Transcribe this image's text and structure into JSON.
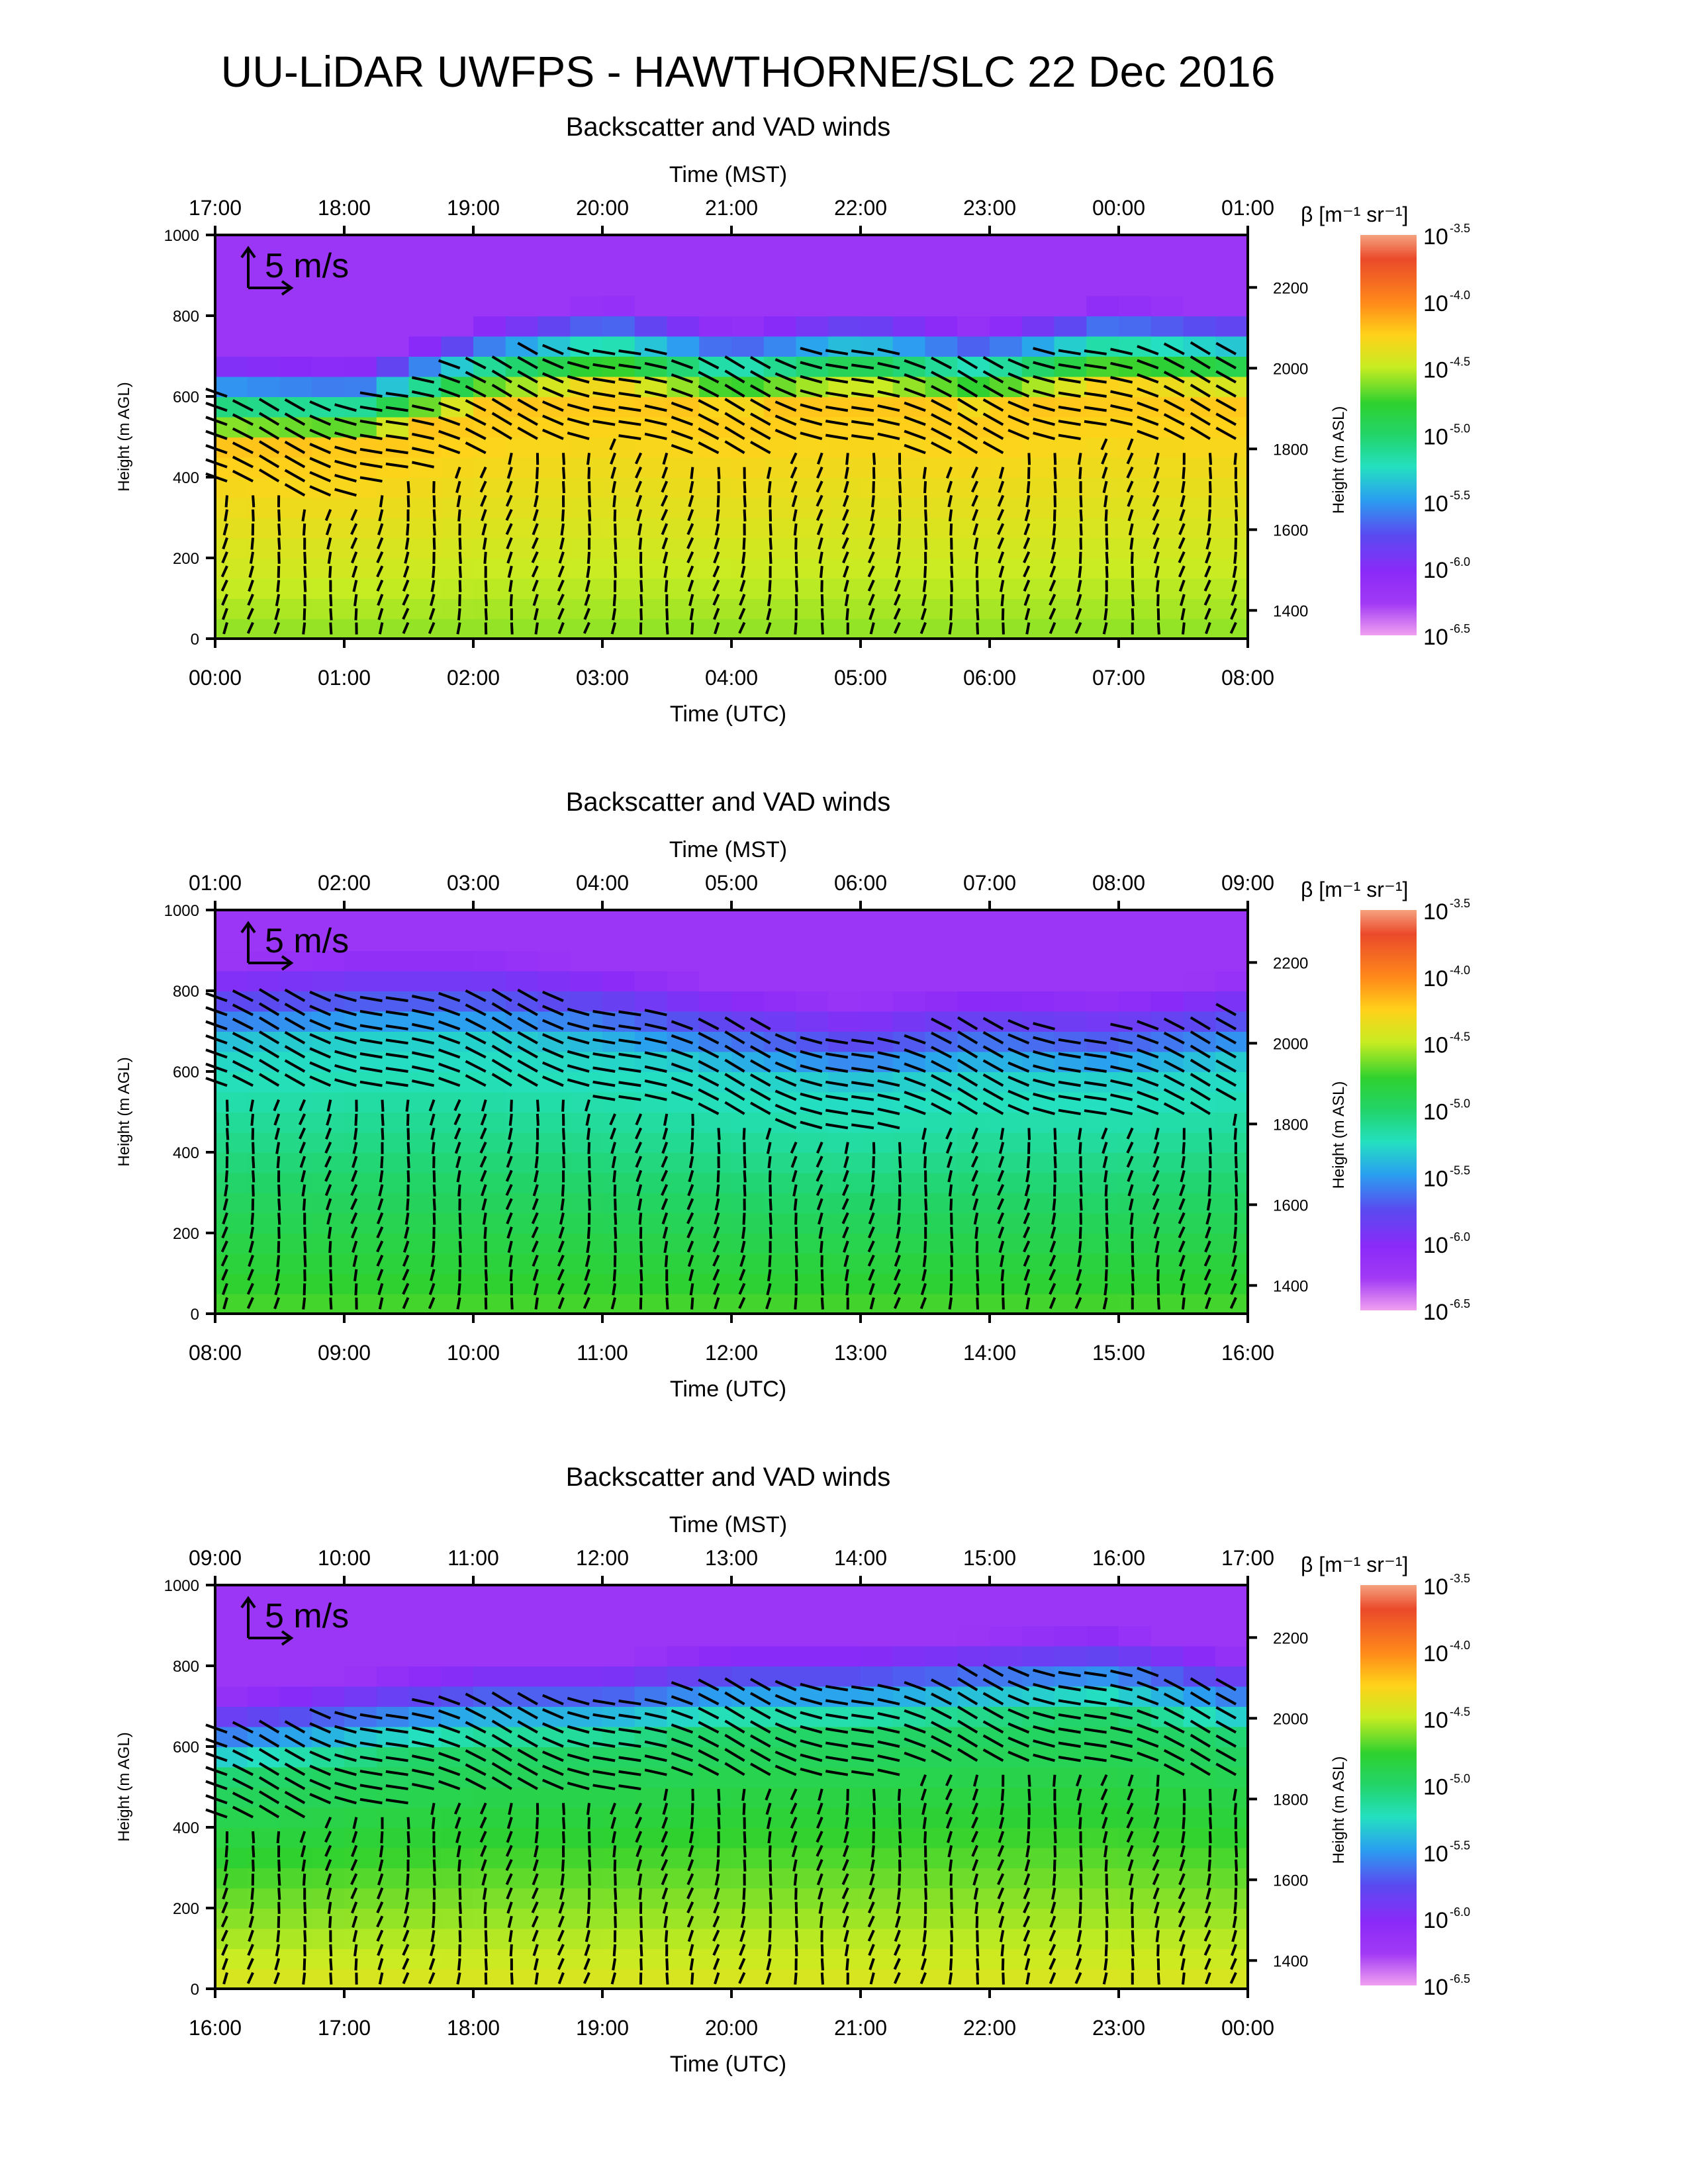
{
  "page": {
    "title": "UU-LiDAR UWFPS - HAWTHORNE/SLC 22 Dec 2016"
  },
  "chart_data": [
    {
      "type": "heatmap",
      "panel": "top",
      "title": "Backscatter and VAD winds",
      "top_axis_label": "Time (MST)",
      "top_ticks": [
        "17:00",
        "18:00",
        "19:00",
        "20:00",
        "21:00",
        "22:00",
        "23:00",
        "00:00",
        "01:00"
      ],
      "xlabel": "Time (UTC)",
      "bottom_ticks": [
        "00:00",
        "01:00",
        "02:00",
        "03:00",
        "04:00",
        "05:00",
        "06:00",
        "07:00",
        "08:00"
      ],
      "ylabel": "Height (m AGL)",
      "yticks": [
        0,
        200,
        400,
        600,
        800,
        1000
      ],
      "ylim": [
        0,
        1000
      ],
      "y2label": "Height (m ASL)",
      "y2ticks": [
        1400,
        1600,
        1800,
        2000,
        2200
      ],
      "y2lim": [
        1330,
        2330
      ],
      "scale_label": "5 m/s",
      "colorbar": {
        "label": "β [m⁻¹ sr⁻¹]",
        "base": "10",
        "exponents": [
          "-3.5",
          "-4.0",
          "-4.5",
          "-5.0",
          "-5.5",
          "-6.0",
          "-6.5"
        ],
        "scale": "log"
      },
      "log10_backscatter_profile": {
        "x_hours_utc": [
          0,
          1,
          2,
          3,
          4,
          5,
          6,
          7,
          8
        ],
        "top_of_layer_m": [
          480,
          470,
          570,
          620,
          560,
          600,
          560,
          620,
          600
        ],
        "surface_log10": -4.6,
        "layer_top_log10": -4.2
      }
    },
    {
      "type": "heatmap",
      "panel": "middle",
      "title": "Backscatter and VAD winds",
      "top_axis_label": "Time (MST)",
      "top_ticks": [
        "01:00",
        "02:00",
        "03:00",
        "04:00",
        "05:00",
        "06:00",
        "07:00",
        "08:00",
        "09:00"
      ],
      "xlabel": "Time (UTC)",
      "bottom_ticks": [
        "08:00",
        "09:00",
        "10:00",
        "11:00",
        "12:00",
        "13:00",
        "14:00",
        "15:00",
        "16:00"
      ],
      "ylabel": "Height (m AGL)",
      "yticks": [
        0,
        200,
        400,
        600,
        800,
        1000
      ],
      "ylim": [
        0,
        1000
      ],
      "y2label": "Height (m ASL)",
      "y2ticks": [
        1400,
        1600,
        1800,
        2000,
        2200
      ],
      "y2lim": [
        1330,
        2330
      ],
      "scale_label": "5 m/s",
      "colorbar": {
        "label": "β [m⁻¹ sr⁻¹]",
        "base": "10",
        "exponents": [
          "-3.5",
          "-4.0",
          "-4.5",
          "-5.0",
          "-5.5",
          "-6.0",
          "-6.5"
        ],
        "scale": "log"
      },
      "log10_backscatter_profile": {
        "x_hours_utc": [
          8,
          9,
          10,
          11,
          12,
          13,
          14,
          15,
          16
        ],
        "top_of_layer_m": [
          660,
          680,
          680,
          650,
          600,
          560,
          600,
          580,
          620
        ],
        "surface_log10": -4.7,
        "layer_top_log10": -5.3
      }
    },
    {
      "type": "heatmap",
      "panel": "bottom",
      "title": "Backscatter and VAD winds",
      "top_axis_label": "Time (MST)",
      "top_ticks": [
        "09:00",
        "10:00",
        "11:00",
        "12:00",
        "13:00",
        "14:00",
        "15:00",
        "16:00",
        "17:00"
      ],
      "xlabel": "Time (UTC)",
      "bottom_ticks": [
        "16:00",
        "17:00",
        "18:00",
        "19:00",
        "20:00",
        "21:00",
        "22:00",
        "23:00",
        "00:00"
      ],
      "ylabel": "Height (m AGL)",
      "yticks": [
        0,
        200,
        400,
        600,
        800,
        1000
      ],
      "ylim": [
        0,
        1000
      ],
      "y2label": "Height (m ASL)",
      "y2ticks": [
        1400,
        1600,
        1800,
        2000,
        2200
      ],
      "y2lim": [
        1330,
        2330
      ],
      "scale_label": "5 m/s",
      "colorbar": {
        "label": "β [m⁻¹ sr⁻¹]",
        "base": "10",
        "exponents": [
          "-3.5",
          "-4.0",
          "-4.5",
          "-5.0",
          "-5.5",
          "-6.0",
          "-6.5"
        ],
        "scale": "log"
      },
      "log10_backscatter_profile": {
        "x_hours_utc": [
          16,
          17,
          18,
          19,
          20,
          21,
          22,
          23,
          24
        ],
        "top_of_layer_m": [
          520,
          560,
          600,
          600,
          640,
          640,
          660,
          680,
          620
        ],
        "surface_log10": -4.4,
        "layer_top_log10": -5.0
      }
    }
  ]
}
